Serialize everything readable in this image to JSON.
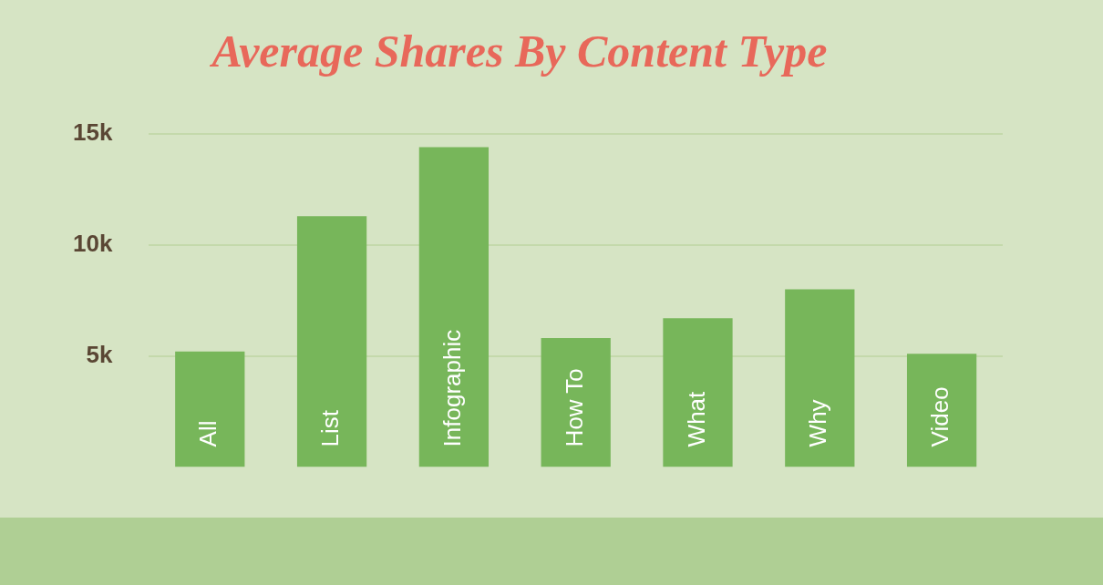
{
  "chart_data": {
    "type": "bar",
    "title": "Average Shares By Content Type",
    "categories": [
      "All",
      "List",
      "Infographic",
      "How To",
      "What",
      "Why",
      "Video"
    ],
    "values": [
      5200,
      11300,
      14400,
      5800,
      6700,
      8000,
      5100
    ],
    "color": "#77b65a",
    "ylim": [
      0,
      15000
    ],
    "yticks": [
      {
        "value": 5000,
        "label": "5k"
      },
      {
        "value": 10000,
        "label": "10k"
      },
      {
        "value": 15000,
        "label": "15k"
      }
    ],
    "grid": "y"
  }
}
